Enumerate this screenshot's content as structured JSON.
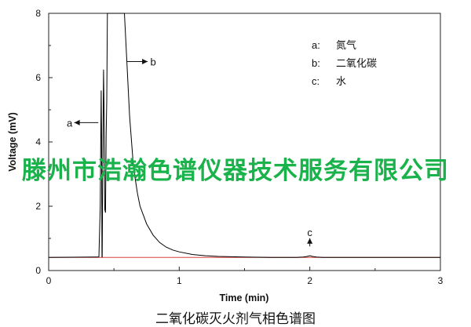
{
  "chart_data": {
    "type": "line",
    "xlabel": "Time (min)",
    "ylabel": "Voltage (mV)",
    "xlim": [
      0,
      3
    ],
    "ylim": [
      0,
      8
    ],
    "xticks": [
      "0",
      "1",
      "2",
      "3"
    ],
    "yticks": [
      "0",
      "2",
      "4",
      "6",
      "8"
    ],
    "grid": false,
    "series": [
      {
        "color": "#000000",
        "x": [
          0,
          0.35,
          0.38,
          0.385,
          0.395,
          0.4,
          0.402,
          0.405,
          0.408,
          0.41,
          0.415,
          0.42,
          0.425,
          0.43,
          0.435,
          0.44,
          0.445,
          0.45,
          0.47,
          0.5,
          0.52,
          0.55,
          0.58,
          0.6,
          0.62,
          0.65,
          0.68,
          0.7,
          0.75,
          0.8,
          0.85,
          0.9,
          0.95,
          1.0,
          1.1,
          1.2,
          1.3,
          1.5,
          1.7,
          1.9,
          1.95,
          1.98,
          2.0,
          2.02,
          2.05,
          2.1,
          2.3,
          2.5,
          2.7,
          2.9,
          3.0
        ],
        "y": [
          0.41,
          0.42,
          0.42,
          0.43,
          2.0,
          4.5,
          5.6,
          4.2,
          0.42,
          0.42,
          3.4,
          6.25,
          4.8,
          1.9,
          1.8,
          4.2,
          5.3,
          8.0,
          8.0,
          8.0,
          8.0,
          8.0,
          8.0,
          6.4,
          4.8,
          3.2,
          2.4,
          2.0,
          1.45,
          1.1,
          0.87,
          0.73,
          0.64,
          0.58,
          0.5,
          0.46,
          0.44,
          0.42,
          0.41,
          0.41,
          0.42,
          0.44,
          0.46,
          0.44,
          0.42,
          0.41,
          0.41,
          0.41,
          0.41,
          0.41,
          0.41
        ]
      },
      {
        "color": "#e0403a",
        "x": [
          0,
          3
        ],
        "y": [
          0.41,
          0.41
        ]
      }
    ],
    "annotations": [
      {
        "text": "a",
        "x": 0.16,
        "y": 4.6,
        "arrow_to": [
          0.38,
          4.6
        ]
      },
      {
        "text": "b",
        "x": 0.8,
        "y": 6.5,
        "arrow_from": [
          0.6,
          6.5
        ]
      },
      {
        "text": "c",
        "x": 2.0,
        "y": 1.2,
        "arrow_to": [
          2.0,
          0.75
        ]
      }
    ],
    "legend": {
      "placement": "top-right",
      "items": [
        {
          "key": "a:",
          "text": "氮气"
        },
        {
          "key": "b:",
          "text": "二氧化碳"
        },
        {
          "key": "c:",
          "text": "水"
        }
      ]
    }
  },
  "caption": "二氧化碳灭火剂气相色谱图",
  "watermark": "滕州市浩瀚色谱仪器技术服务有限公司"
}
